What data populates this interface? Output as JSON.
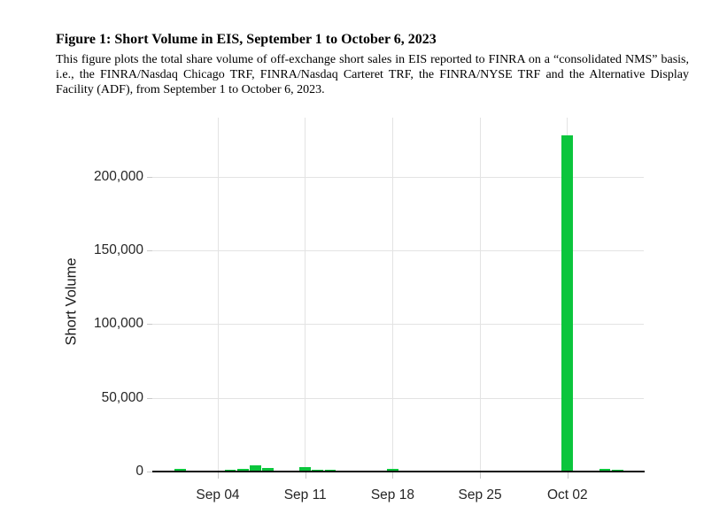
{
  "page": {
    "background": "#ffffff"
  },
  "document": {
    "title": "Figure 1: Short Volume in EIS, September 1 to October 6, 2023",
    "description": "This figure plots the total share volume of off-exchange short sales in EIS reported to FINRA on a “consolidated NMS” basis, i.e., the FINRA/Nasdaq Chicago TRF, FINRA/Nasdaq Carteret TRF, the FINRA/NYSE TRF and the Alternative Display Facility (ADF), from September 1 to October 6, 2023."
  },
  "chart_data": {
    "type": "bar",
    "title": "",
    "xlabel": "",
    "ylabel": "Short Volume",
    "ylim": [
      0,
      240000
    ],
    "grid": true,
    "legend": "none",
    "bar_color": "#0bc53c",
    "axis_line_color": "#0a0a0a",
    "gridline_color": "#e3e3e3",
    "tick_mark_color": "#c9c9c9",
    "tick_label_color": "#262626",
    "points": [
      {
        "date": "Sep 01",
        "day": 0,
        "value": 2000
      },
      {
        "date": "Sep 05",
        "day": 4,
        "value": 1500
      },
      {
        "date": "Sep 06",
        "day": 5,
        "value": 2100
      },
      {
        "date": "Sep 07",
        "day": 6,
        "value": 4200
      },
      {
        "date": "Sep 08",
        "day": 7,
        "value": 2600
      },
      {
        "date": "Sep 11",
        "day": 10,
        "value": 2900
      },
      {
        "date": "Sep 12",
        "day": 11,
        "value": 1300
      },
      {
        "date": "Sep 13",
        "day": 12,
        "value": 1100
      },
      {
        "date": "Sep 14",
        "day": 13,
        "value": 700
      },
      {
        "date": "Sep 15",
        "day": 14,
        "value": 500
      },
      {
        "date": "Sep 18",
        "day": 17,
        "value": 1800
      },
      {
        "date": "Sep 19",
        "day": 18,
        "value": 900
      },
      {
        "date": "Sep 20",
        "day": 19,
        "value": 800
      },
      {
        "date": "Sep 21",
        "day": 20,
        "value": 600
      },
      {
        "date": "Sep 22",
        "day": 21,
        "value": 500
      },
      {
        "date": "Sep 25",
        "day": 24,
        "value": 300
      },
      {
        "date": "Sep 26",
        "day": 25,
        "value": 300
      },
      {
        "date": "Sep 27",
        "day": 26,
        "value": 400
      },
      {
        "date": "Sep 28",
        "day": 27,
        "value": 300
      },
      {
        "date": "Sep 29",
        "day": 28,
        "value": 400
      },
      {
        "date": "Oct 02",
        "day": 31,
        "value": 228000
      },
      {
        "date": "Oct 03",
        "day": 32,
        "value": 800
      },
      {
        "date": "Oct 04",
        "day": 33,
        "value": 900
      },
      {
        "date": "Oct 05",
        "day": 34,
        "value": 2100
      },
      {
        "date": "Oct 06",
        "day": 35,
        "value": 1400
      }
    ],
    "y_ticks": [
      {
        "label": "0",
        "value": 0
      },
      {
        "label": "50,000",
        "value": 50000
      },
      {
        "label": "100,000",
        "value": 100000
      },
      {
        "label": "150,000",
        "value": 150000
      },
      {
        "label": "200,000",
        "value": 200000
      }
    ],
    "x_ticks": [
      {
        "label": "Sep 04",
        "day": 3
      },
      {
        "label": "Sep 11",
        "day": 10
      },
      {
        "label": "Sep 18",
        "day": 17
      },
      {
        "label": "Sep 25",
        "day": 24
      },
      {
        "label": "Oct 02",
        "day": 31
      }
    ]
  }
}
